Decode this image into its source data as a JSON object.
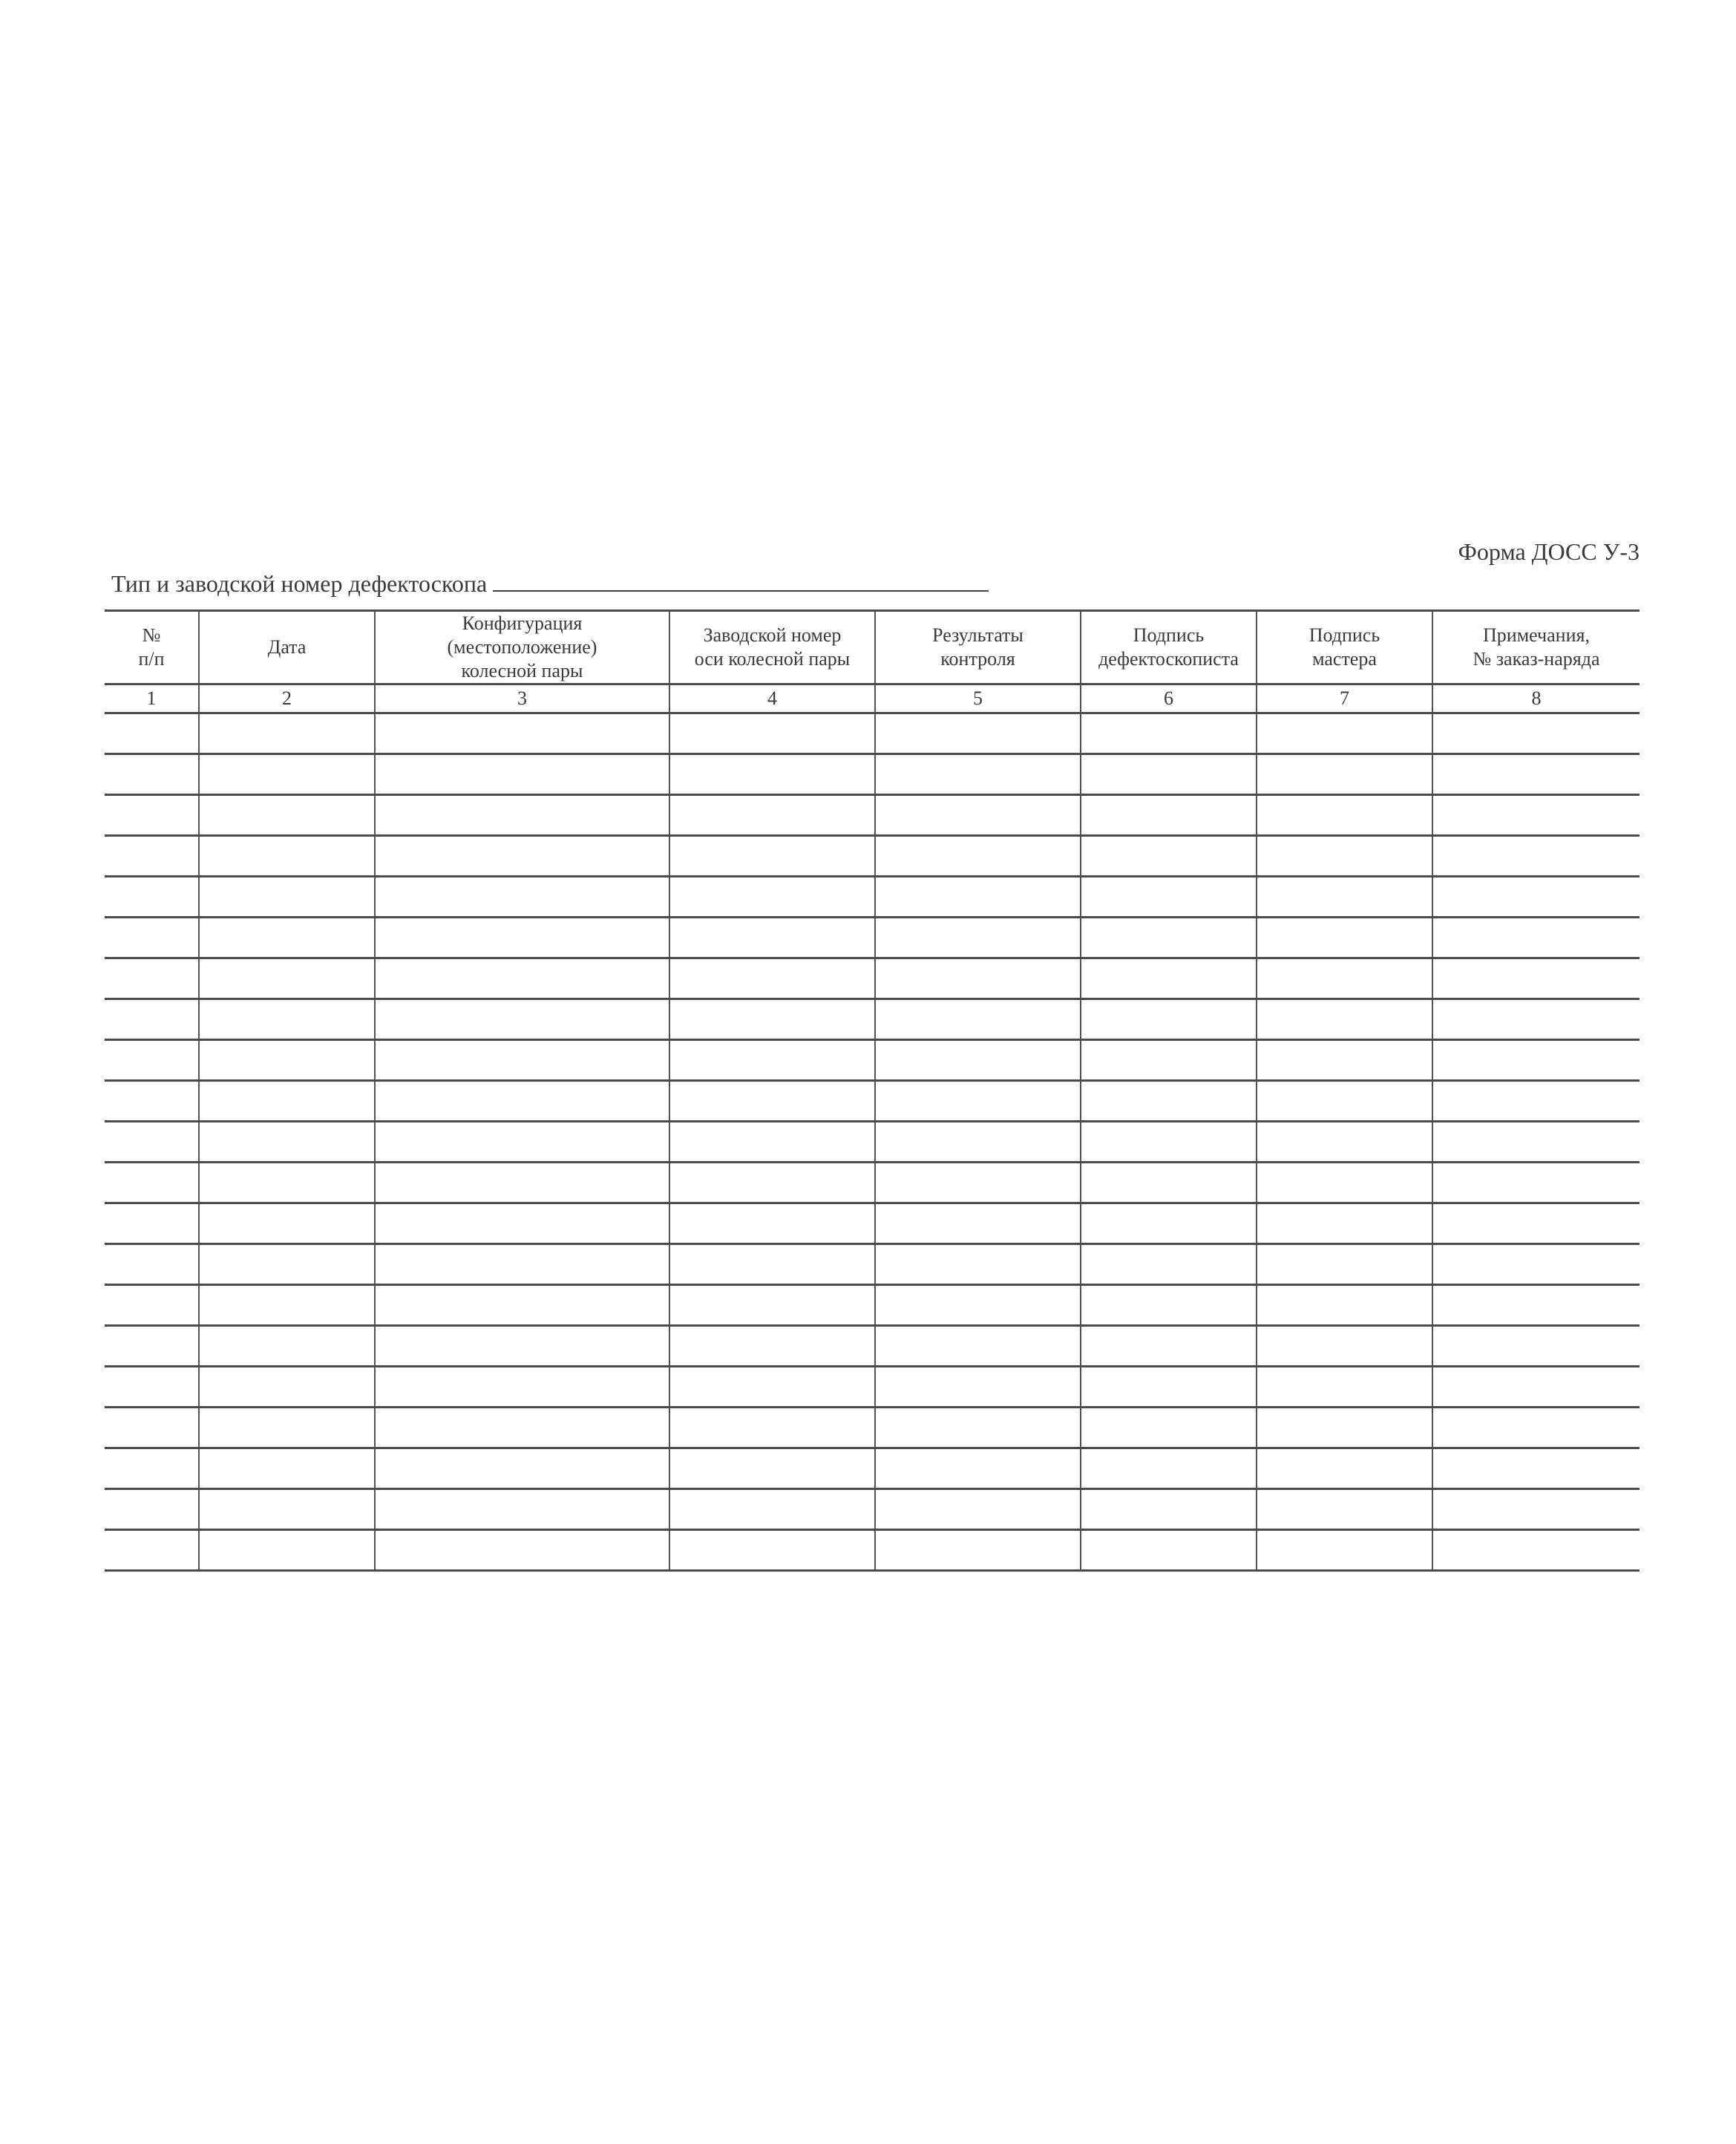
{
  "form_code": "Форма ДОСС У-3",
  "title": "Тип и заводской номер дефектоскопа",
  "table": {
    "headers": [
      [
        "№",
        "п/п"
      ],
      [
        "Дата"
      ],
      [
        "Конфигурация",
        "(местоположение)",
        "колесной пары"
      ],
      [
        "Заводской номер",
        "оси колесной пары"
      ],
      [
        "Результаты",
        "контроля"
      ],
      [
        "Подпись",
        "дефектоскописта"
      ],
      [
        "Подпись",
        "мастера"
      ],
      [
        "Примечания,",
        "№ заказ-наряда"
      ]
    ],
    "column_numbers": [
      "1",
      "2",
      "3",
      "4",
      "5",
      "6",
      "7",
      "8"
    ]
  }
}
